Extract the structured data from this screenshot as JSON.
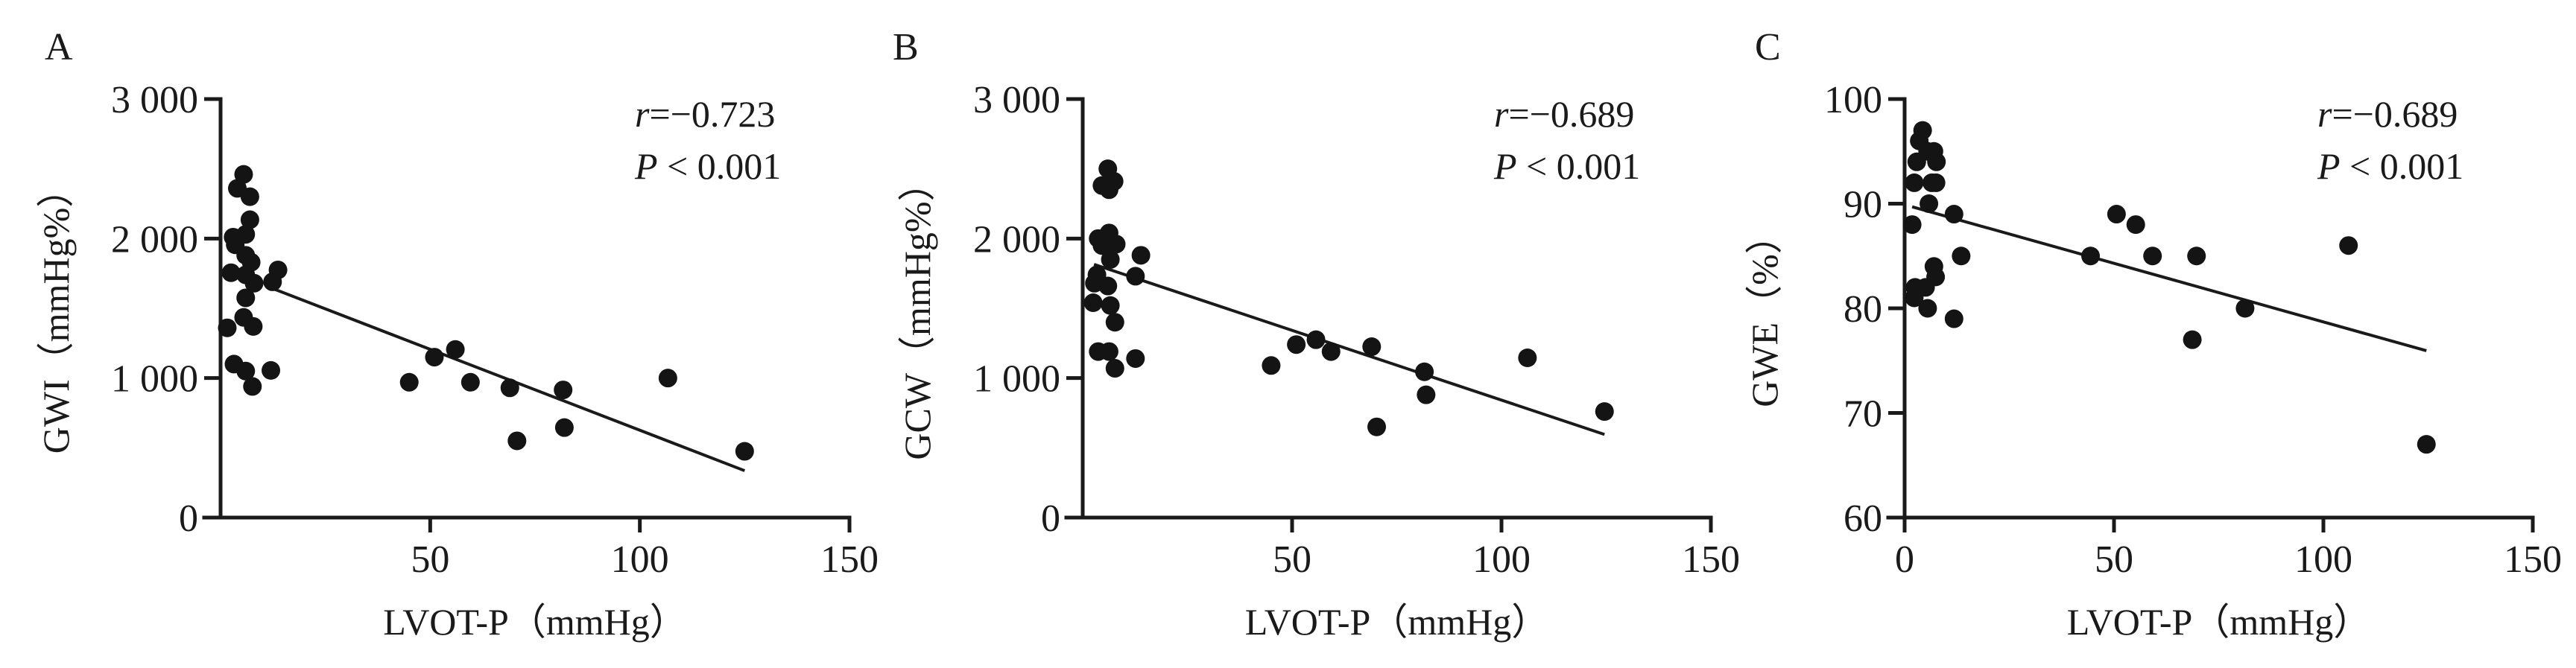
{
  "chart_data": [
    {
      "panel": "A",
      "type": "scatter",
      "title": "",
      "xlabel": "LVOT-P（mmHg）",
      "ylabel": "GWI（mmHg%）",
      "xlim": [
        0,
        150
      ],
      "ylim": [
        0,
        3000
      ],
      "xticks": [
        50,
        100,
        150
      ],
      "xtick_labels": [
        "50",
        "100",
        "150"
      ],
      "yticks": [
        0,
        1000,
        2000,
        3000
      ],
      "ytick_labels": [
        "0",
        "1 000",
        "2 000",
        "3 000"
      ],
      "grid": false,
      "stats": {
        "r_label": "r",
        "r_value": "=−0.723",
        "p_label": "P",
        "p_value": " < 0.001"
      },
      "points": [
        [
          5.5,
          2460
        ],
        [
          4,
          2360
        ],
        [
          7,
          2300
        ],
        [
          7,
          2135
        ],
        [
          3,
          2010
        ],
        [
          6,
          2030
        ],
        [
          3.5,
          1955
        ],
        [
          6,
          1880
        ],
        [
          7.3,
          1830
        ],
        [
          2.5,
          1755
        ],
        [
          6,
          1740
        ],
        [
          13.7,
          1775
        ],
        [
          12.4,
          1690
        ],
        [
          8,
          1680
        ],
        [
          6,
          1575
        ],
        [
          5.5,
          1435
        ],
        [
          7.8,
          1370
        ],
        [
          1.6,
          1360
        ],
        [
          3.2,
          1100
        ],
        [
          6,
          1050
        ],
        [
          12,
          1055
        ],
        [
          7.6,
          940
        ],
        [
          45,
          970
        ],
        [
          51,
          1150
        ],
        [
          56,
          1205
        ],
        [
          59.6,
          970
        ],
        [
          69,
          930
        ],
        [
          70.7,
          550
        ],
        [
          81.7,
          915
        ],
        [
          82,
          645
        ],
        [
          106.7,
          1000
        ],
        [
          125,
          475
        ]
      ],
      "regression": {
        "x_start": 12.8,
        "x_end": 125,
        "slope": -11.6,
        "intercept": 1786
      }
    },
    {
      "panel": "B",
      "type": "scatter",
      "title": "",
      "xlabel": "LVOT-P（mmHg）",
      "ylabel": "GCW（mmHg%）",
      "xlim": [
        0,
        150
      ],
      "ylim": [
        0,
        3000
      ],
      "xticks": [
        50,
        100,
        150
      ],
      "xtick_labels": [
        "50",
        "100",
        "150"
      ],
      "yticks": [
        0,
        1000,
        2000,
        3000
      ],
      "ytick_labels": [
        "0",
        "1 000",
        "2 000",
        "3 000"
      ],
      "grid": false,
      "stats": {
        "r_label": "r",
        "r_value": "=−0.689",
        "p_label": "P",
        "p_value": " < 0.001"
      },
      "points": [
        [
          6,
          2500
        ],
        [
          4.6,
          2380
        ],
        [
          7.5,
          2410
        ],
        [
          6.3,
          2350
        ],
        [
          3.7,
          2000
        ],
        [
          6.3,
          2040
        ],
        [
          8,
          1960
        ],
        [
          4.6,
          1950
        ],
        [
          6.6,
          1850
        ],
        [
          13.9,
          1880
        ],
        [
          12.6,
          1730
        ],
        [
          3.4,
          1740
        ],
        [
          2.8,
          1680
        ],
        [
          6,
          1660
        ],
        [
          2.5,
          1540
        ],
        [
          6.6,
          1520
        ],
        [
          7.7,
          1400
        ],
        [
          3.7,
          1190
        ],
        [
          6.3,
          1190
        ],
        [
          12.6,
          1140
        ],
        [
          7.7,
          1070
        ],
        [
          45,
          1090
        ],
        [
          51,
          1240
        ],
        [
          55.7,
          1275
        ],
        [
          59.3,
          1190
        ],
        [
          69,
          1225
        ],
        [
          70.2,
          650
        ],
        [
          81.6,
          1045
        ],
        [
          82,
          880
        ],
        [
          106.2,
          1145
        ],
        [
          124.6,
          760
        ]
      ],
      "regression": {
        "x_start": 2.7,
        "x_end": 124.6,
        "slope": -10.0,
        "intercept": 1842
      }
    },
    {
      "panel": "C",
      "type": "scatter",
      "title": "",
      "xlabel": "LVOT-P（mmHg）",
      "ylabel": "GWE（%）",
      "xlim": [
        0,
        150
      ],
      "ylim": [
        60,
        100
      ],
      "xticks": [
        0,
        50,
        100,
        150
      ],
      "xtick_labels": [
        "0",
        "50",
        "100",
        "150"
      ],
      "yticks": [
        60,
        70,
        80,
        90,
        100
      ],
      "ytick_labels": [
        "60",
        "70",
        "80",
        "90",
        "100"
      ],
      "grid": false,
      "stats": {
        "r_label": "r",
        "r_value": "=−0.689",
        "p_label": "P",
        "p_value": " < 0.001"
      },
      "points": [
        [
          4.3,
          97
        ],
        [
          3.5,
          96
        ],
        [
          2.9,
          94
        ],
        [
          5.5,
          95
        ],
        [
          7,
          95
        ],
        [
          7.6,
          94
        ],
        [
          2.3,
          92
        ],
        [
          6.5,
          92
        ],
        [
          7.5,
          92
        ],
        [
          5.8,
          90
        ],
        [
          1.8,
          88
        ],
        [
          11.8,
          89
        ],
        [
          13.5,
          85
        ],
        [
          7,
          84
        ],
        [
          7.4,
          83
        ],
        [
          2.5,
          82
        ],
        [
          5,
          82
        ],
        [
          2.3,
          81
        ],
        [
          5.5,
          80
        ],
        [
          11.8,
          79
        ],
        [
          44.4,
          85
        ],
        [
          50.6,
          89
        ],
        [
          55.2,
          88
        ],
        [
          59.2,
          85
        ],
        [
          69.7,
          85
        ],
        [
          68.7,
          77
        ],
        [
          81.3,
          80
        ],
        [
          106,
          86
        ],
        [
          124.6,
          67
        ]
      ],
      "regression": {
        "x_start": 1.8,
        "x_end": 124.6,
        "slope": -0.112,
        "intercept": 89.9
      }
    }
  ],
  "colors": {
    "ink": "#141414",
    "background": "#ffffff"
  }
}
